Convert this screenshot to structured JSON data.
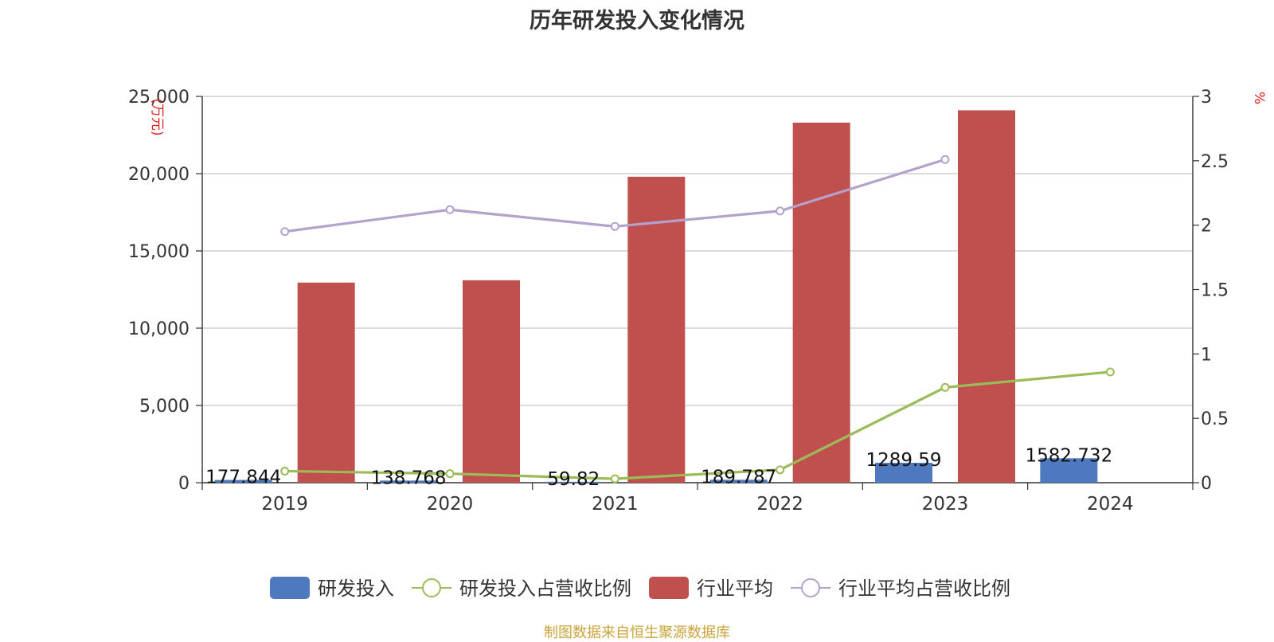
{
  "title": "历年研发投入变化情况",
  "source": "制图数据来自恒生聚源数据库",
  "chart_data": {
    "type": "bar",
    "categories": [
      "2019",
      "2020",
      "2021",
      "2022",
      "2023",
      "2024"
    ],
    "y_left": {
      "unit": "(万元)",
      "ylim": [
        0,
        25000
      ],
      "ticks": [
        0,
        5000,
        10000,
        15000,
        20000,
        25000
      ],
      "tick_labels": [
        "0",
        "5,000",
        "10,000",
        "15,000",
        "20,000",
        "25,000"
      ]
    },
    "y_right": {
      "unit": "%",
      "ylim": [
        0,
        3
      ],
      "ticks": [
        0,
        0.5,
        1,
        1.5,
        2,
        2.5,
        3
      ],
      "tick_labels": [
        "0",
        "0.5",
        "1",
        "1.5",
        "2",
        "2.5",
        "3"
      ]
    },
    "grid": true,
    "legend_position": "bottom",
    "series": [
      {
        "name": "研发投入",
        "type": "bar",
        "axis": "left",
        "color": "#4e79be",
        "values": [
          177.844,
          138.768,
          59.82,
          189.787,
          1289.59,
          1582.732
        ],
        "labels": [
          "177.844",
          "138.768",
          "59.82",
          "189.787",
          "1289.59",
          "1582.732"
        ]
      },
      {
        "name": "研发投入占营收比例",
        "type": "line",
        "axis": "right",
        "color": "#9bbb59",
        "values": [
          0.09,
          0.07,
          0.03,
          0.1,
          0.74,
          0.86
        ]
      },
      {
        "name": "行业平均",
        "type": "bar",
        "axis": "left",
        "color": "#c0504d",
        "values": [
          12950,
          13100,
          19800,
          23300,
          24100,
          null
        ]
      },
      {
        "name": "行业平均占营收比例",
        "type": "line",
        "axis": "right",
        "color": "#b3a2cc",
        "values": [
          1.95,
          2.12,
          1.99,
          2.11,
          2.51,
          null
        ]
      }
    ]
  }
}
